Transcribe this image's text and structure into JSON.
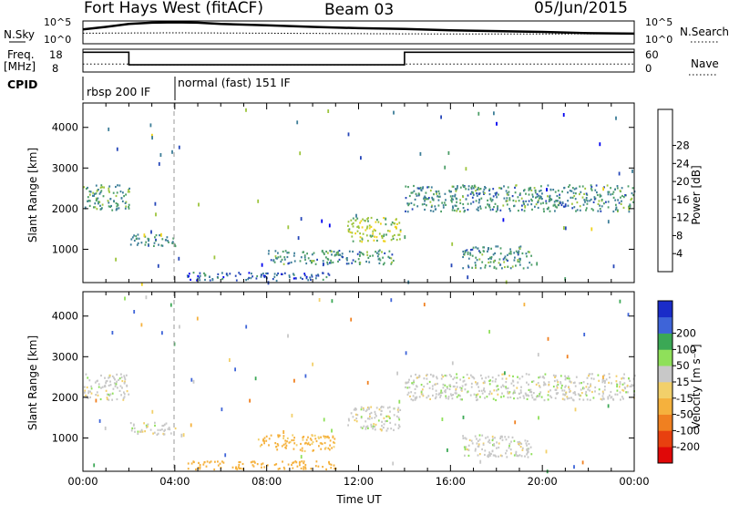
{
  "header": {
    "radar": "Fort Hays West (fitACF)",
    "beam": "Beam 03",
    "date": "05/Jun/2015"
  },
  "noise_panel": {
    "left_label": "N.Sky",
    "right_label": "N.Search",
    "left_ticks": [
      "10^5",
      "10^0"
    ],
    "right_ticks": [
      "10^5",
      "10^0"
    ]
  },
  "freq_panel": {
    "left_label_line1": "Freq.",
    "left_label_line2": "[MHz]",
    "right_label": "Nave",
    "left_ticks": [
      "18",
      "8"
    ],
    "right_ticks": [
      "60",
      "0"
    ]
  },
  "cpid": {
    "label": "CPID",
    "segments": [
      {
        "name": "rbsp 200 IF",
        "start_hr": 0,
        "end_hr": 4
      },
      {
        "name": "normal (fast) 151 IF",
        "start_hr": 4,
        "end_hr": 24
      }
    ]
  },
  "axes": {
    "ylabel": "Slant Range [km]",
    "xlabel": "Time UT",
    "x_ticks": [
      "00:00",
      "04:00",
      "08:00",
      "12:00",
      "16:00",
      "20:00",
      "00:00"
    ],
    "y_ticks": [
      "1000",
      "2000",
      "3000",
      "4000"
    ]
  },
  "colorbars": {
    "power": {
      "title": "Power [dB]",
      "ticks": [
        "4",
        "8",
        "12",
        "16",
        "20",
        "24",
        "28"
      ],
      "colors": [
        "#0000f0",
        "#2546b8",
        "#3d7e98",
        "#4c9e68",
        "#9dc53e",
        "#efd21c",
        "#f59a1a",
        "#f0641a",
        "#e01616"
      ]
    },
    "velocity": {
      "title": "Velocity [m s⁻¹]",
      "ticks": [
        "200",
        "100",
        "50",
        "15",
        "-15",
        "-50",
        "-100",
        "-200"
      ],
      "colors": [
        "#1a2cc8",
        "#3e64d8",
        "#3ba855",
        "#8fe05a",
        "#c8c8c8",
        "#f2d06a",
        "#f5b13d",
        "#f08020",
        "#e8400f",
        "#e00808"
      ]
    }
  },
  "chart_data": [
    {
      "type": "line",
      "title": "N.Sky / N.Search",
      "x_range_hours": [
        0,
        24
      ],
      "log_scale": true,
      "ylim_exponent": [
        0,
        5
      ],
      "series": [
        {
          "name": "N.Sky",
          "x": [
            0,
            1,
            2,
            3,
            4,
            5,
            6,
            8,
            10,
            12,
            14,
            16,
            18,
            20,
            22,
            24
          ],
          "values_log10": [
            3.2,
            3.8,
            4.5,
            4.8,
            4.9,
            4.8,
            4.5,
            4.2,
            3.8,
            3.5,
            3.3,
            3.0,
            2.8,
            2.6,
            2.3,
            2.2
          ]
        },
        {
          "name": "N.Search",
          "x": [
            0,
            4,
            8,
            12,
            16,
            20,
            24
          ],
          "values_log10": [
            2.3,
            2.4,
            2.3,
            2.2,
            2.1,
            2.1,
            2.2
          ]
        }
      ]
    },
    {
      "type": "line",
      "title": "Freq / Nave",
      "x_range_hours": [
        0,
        24
      ],
      "series": [
        {
          "name": "Freq.",
          "unit": "MHz",
          "ylim": [
            8,
            18
          ],
          "x": [
            0,
            2,
            2,
            14,
            14,
            24
          ],
          "values": [
            17,
            17,
            11,
            11,
            17,
            17
          ]
        },
        {
          "name": "Nave",
          "ylim": [
            0,
            60
          ],
          "x": [
            0,
            2,
            2,
            14,
            14,
            24
          ],
          "values": [
            20,
            20,
            18,
            18,
            20,
            20
          ]
        }
      ]
    },
    {
      "type": "heatmap",
      "title": "Power",
      "colorbar": "Power [dB]",
      "x_range_hours": [
        0,
        24
      ],
      "ylim_km": [
        180,
        4600
      ],
      "blobs": [
        {
          "t0": 0,
          "t1": 2,
          "r0": 1950,
          "r1": 2600,
          "level": 16
        },
        {
          "t0": 2,
          "t1": 4,
          "r0": 1100,
          "r1": 1400,
          "level": 14
        },
        {
          "t0": 4.5,
          "t1": 11,
          "r0": 250,
          "r1": 450,
          "level": 10
        },
        {
          "t0": 8,
          "t1": 13.5,
          "r0": 650,
          "r1": 1000,
          "level": 14
        },
        {
          "t0": 11.5,
          "t1": 13.8,
          "r0": 1200,
          "r1": 1800,
          "level": 20
        },
        {
          "t0": 14,
          "t1": 24,
          "r0": 1950,
          "r1": 2600,
          "level": 14
        },
        {
          "t0": 16.5,
          "t1": 19.5,
          "r0": 550,
          "r1": 1100,
          "level": 14
        }
      ]
    },
    {
      "type": "heatmap",
      "title": "Velocity",
      "colorbar": "Velocity [m s⁻¹]",
      "x_range_hours": [
        0,
        24
      ],
      "ylim_km": [
        180,
        4600
      ],
      "blobs": [
        {
          "t0": 0,
          "t1": 2,
          "r0": 1950,
          "r1": 2600,
          "velocity": 0
        },
        {
          "t0": 2,
          "t1": 4,
          "r0": 1100,
          "r1": 1400,
          "velocity": 0
        },
        {
          "t0": 4.5,
          "t1": 11,
          "r0": 250,
          "r1": 450,
          "velocity": -80
        },
        {
          "t0": 7.5,
          "t1": 11,
          "r0": 700,
          "r1": 1100,
          "velocity": -60
        },
        {
          "t0": 11.5,
          "t1": 13.8,
          "r0": 1200,
          "r1": 1800,
          "velocity": 0
        },
        {
          "t0": 14,
          "t1": 24,
          "r0": 1950,
          "r1": 2600,
          "velocity": 0
        },
        {
          "t0": 16.5,
          "t1": 19.5,
          "r0": 550,
          "r1": 1100,
          "velocity": 0
        }
      ]
    }
  ]
}
